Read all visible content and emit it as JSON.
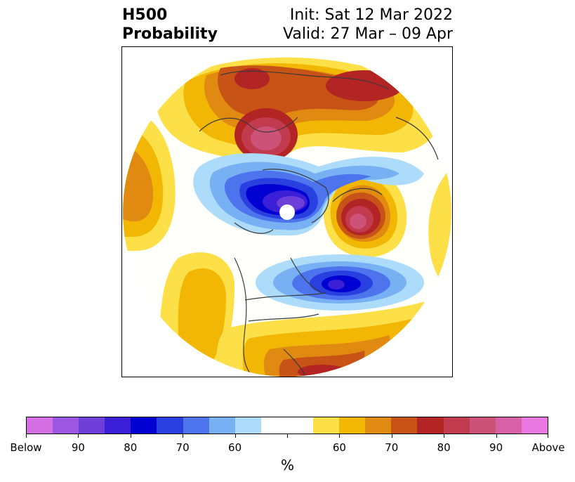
{
  "header": {
    "title_line1": "H500",
    "title_line2": "Probability",
    "init": "Init: Sat 12 Mar 2022",
    "valid": "Valid: 27 Mar – 09 Apr"
  },
  "map": {
    "projection": "north-polar-stereographic",
    "field": "500 hPa height anomaly probability",
    "features": [
      {
        "name": "below-center-greenland-arctic",
        "category": "below",
        "peak_percent": 90
      },
      {
        "name": "below-center-north-atlantic",
        "category": "below",
        "peak_percent": 90
      },
      {
        "name": "above-center-europe-russia",
        "category": "above",
        "peak_percent": 80
      },
      {
        "name": "above-center-alaska-bering",
        "category": "above",
        "peak_percent": 80
      },
      {
        "name": "above-band-north-pacific",
        "category": "above",
        "peak_percent": 60
      },
      {
        "name": "above-band-us-southeast",
        "category": "above",
        "peak_percent": 70
      }
    ]
  },
  "colorbar": {
    "colors": [
      "#d66fe6",
      "#9c57e3",
      "#6f3fd9",
      "#3a1fd6",
      "#0000d2",
      "#2a3fe0",
      "#4d74ec",
      "#77b1f4",
      "#acdcfa",
      "#ffffff",
      "#ffffff",
      "#fde047",
      "#f2b705",
      "#e08a12",
      "#c75316",
      "#b32424",
      "#c13a4e",
      "#cc5279",
      "#d861a7",
      "#e878df"
    ],
    "tick_labels": [
      "Below",
      "90",
      "80",
      "70",
      "60",
      "",
      "60",
      "70",
      "80",
      "90",
      "Above"
    ],
    "units": "%"
  }
}
